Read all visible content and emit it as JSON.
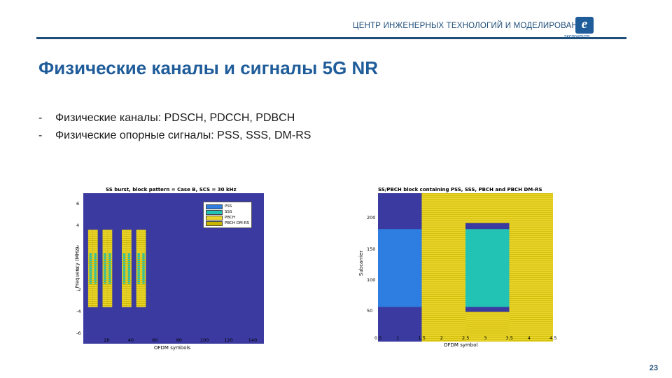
{
  "header": {
    "org_name": "ЦЕНТР ИНЖЕНЕРНЫХ ТЕХНОЛОГИЙ И МОДЕЛИРОВАНИЯ",
    "logo_letter": "e",
    "logo_caption": "экспонента"
  },
  "slide": {
    "title": "Физические каналы и сигналы 5G NR",
    "bullets": [
      "Физические каналы: PDSCH, PDCCH, PDBCH",
      "Физические опорные сигналы: PSS, SSS, DM-RS"
    ],
    "page_number": "23"
  },
  "colors": {
    "navy": "#1f4e79",
    "plot_bg": "#3b3aa0",
    "pss": "#2e7de0",
    "sss": "#22c2b5",
    "pbch": "#e8d42a",
    "dmrs": "#c9b400"
  },
  "chart_data": [
    {
      "type": "heatmap",
      "title": "SS burst, block pattern = Case B, SCS = 30 kHz",
      "xlabel": "OFDM symbols",
      "ylabel": "Frequency (MHz)",
      "xticks": [
        "20",
        "40",
        "60",
        "80",
        "100",
        "120",
        "140"
      ],
      "yticks": [
        "6",
        "4",
        "2",
        "0",
        "-2",
        "-4",
        "-6"
      ],
      "xlim": [
        0,
        150
      ],
      "ylim": [
        -7,
        7
      ],
      "legend": [
        "PSS",
        "SSS",
        "PBCH",
        "PBCH DM-RS"
      ],
      "legend_position": "top-right",
      "blocks_x_start": [
        4,
        8,
        16,
        20,
        32,
        36,
        44,
        48
      ],
      "block_width": 4,
      "freq_range": [
        -3.6,
        3.6
      ]
    },
    {
      "type": "heatmap",
      "title": "SS/PBCH block containing PSS, SSS, PBCH and PBCH DM-RS",
      "xlabel": "OFDM symbol",
      "ylabel": "Subcarrier",
      "xticks": [
        "0.5",
        "1",
        "1.5",
        "2",
        "2.5",
        "3",
        "3.5",
        "4",
        "4.5"
      ],
      "yticks": [
        "200",
        "150",
        "100",
        "50"
      ],
      "xlim": [
        0.5,
        4.5
      ],
      "ylim": [
        0,
        240
      ],
      "regions": [
        {
          "signal": "PSS",
          "x": [
            0.5,
            1.5
          ],
          "y": [
            56,
            182
          ]
        },
        {
          "signal": "SSS",
          "x": [
            2.5,
            3.5
          ],
          "y": [
            56,
            182
          ]
        },
        {
          "signal": "PBCH",
          "x": [
            1.5,
            2.5
          ],
          "y": [
            0,
            240
          ]
        },
        {
          "signal": "PBCH",
          "x": [
            3.5,
            4.5
          ],
          "y": [
            0,
            240
          ]
        },
        {
          "signal": "PBCH",
          "x": [
            2.5,
            3.5
          ],
          "y": [
            0,
            48
          ]
        },
        {
          "signal": "PBCH",
          "x": [
            2.5,
            3.5
          ],
          "y": [
            192,
            240
          ]
        }
      ]
    }
  ]
}
